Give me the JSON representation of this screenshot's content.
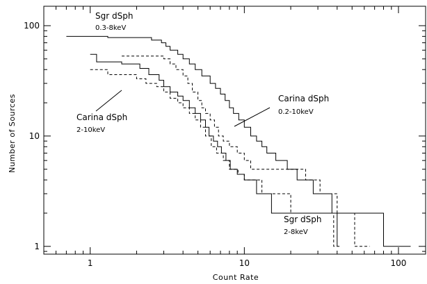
{
  "chart_data": {
    "type": "line",
    "step": true,
    "xscale": "log",
    "yscale": "log",
    "xlabel": "Count Rate",
    "ylabel": "Number of Sources",
    "xlim": [
      0.5,
      150
    ],
    "ylim": [
      0.85,
      150
    ],
    "xticks": [
      {
        "value": 1,
        "label": "1"
      },
      {
        "value": 10,
        "label": "10"
      },
      {
        "value": 100,
        "label": "100"
      }
    ],
    "yticks": [
      {
        "value": 1,
        "label": "1"
      },
      {
        "value": 10,
        "label": "10"
      },
      {
        "value": 100,
        "label": "100"
      }
    ],
    "series": [
      {
        "name": "Sgr dSph 0.3-8keV",
        "style": "solid",
        "points": [
          [
            0.7,
            80
          ],
          [
            1.3,
            78
          ],
          [
            2.5,
            74
          ],
          [
            2.9,
            70
          ],
          [
            3.1,
            65
          ],
          [
            3.3,
            60
          ],
          [
            3.7,
            55
          ],
          [
            4.0,
            50
          ],
          [
            4.4,
            45
          ],
          [
            4.8,
            40
          ],
          [
            5.3,
            35
          ],
          [
            6.0,
            30
          ],
          [
            6.5,
            27
          ],
          [
            7.0,
            24
          ],
          [
            7.5,
            21
          ],
          [
            8.0,
            18
          ],
          [
            8.5,
            16
          ],
          [
            9.2,
            14
          ],
          [
            10,
            12
          ],
          [
            11,
            10
          ],
          [
            12,
            9
          ],
          [
            13,
            8
          ],
          [
            14,
            7
          ],
          [
            16,
            6
          ],
          [
            19,
            5
          ],
          [
            22,
            4
          ],
          [
            28,
            3
          ],
          [
            37,
            2
          ],
          [
            80,
            1
          ],
          [
            120,
            1
          ]
        ]
      },
      {
        "name": "Carina dSph 0.2-10keV",
        "style": "dashed",
        "points": [
          [
            1.6,
            53
          ],
          [
            3.0,
            50
          ],
          [
            3.3,
            45
          ],
          [
            3.6,
            40
          ],
          [
            4.0,
            35
          ],
          [
            4.3,
            30
          ],
          [
            4.6,
            25
          ],
          [
            5.0,
            21
          ],
          [
            5.3,
            18
          ],
          [
            5.6,
            16
          ],
          [
            6.0,
            14
          ],
          [
            6.4,
            12
          ],
          [
            6.8,
            10
          ],
          [
            7.3,
            9
          ],
          [
            8.0,
            8
          ],
          [
            9.0,
            7
          ],
          [
            10,
            6
          ],
          [
            11,
            5
          ],
          [
            15,
            5
          ],
          [
            25,
            4
          ],
          [
            31,
            3
          ],
          [
            40,
            2
          ],
          [
            52,
            1
          ],
          [
            65,
            1
          ]
        ]
      },
      {
        "name": "Carina dSph 2-10keV",
        "style": "solid",
        "points": [
          [
            1.0,
            55
          ],
          [
            1.1,
            47
          ],
          [
            1.6,
            45
          ],
          [
            2.1,
            41
          ],
          [
            2.4,
            36
          ],
          [
            2.8,
            32
          ],
          [
            3.0,
            28
          ],
          [
            3.3,
            25
          ],
          [
            3.7,
            23
          ],
          [
            4.0,
            21
          ],
          [
            4.4,
            18
          ],
          [
            4.8,
            16
          ],
          [
            5.2,
            14
          ],
          [
            5.6,
            12
          ],
          [
            5.9,
            10
          ],
          [
            6.3,
            9
          ],
          [
            6.7,
            8
          ],
          [
            7.1,
            7
          ],
          [
            7.6,
            6
          ],
          [
            8.1,
            5
          ],
          [
            9.0,
            4.5
          ],
          [
            10,
            4
          ],
          [
            12,
            3
          ],
          [
            15,
            2
          ],
          [
            40,
            1
          ]
        ]
      },
      {
        "name": "Sgr dSph 2-8keV",
        "style": "dashed",
        "points": [
          [
            1.0,
            40
          ],
          [
            1.3,
            36
          ],
          [
            2.0,
            33
          ],
          [
            2.3,
            30
          ],
          [
            2.7,
            28
          ],
          [
            3.0,
            25
          ],
          [
            3.3,
            22
          ],
          [
            3.7,
            20
          ],
          [
            4.0,
            18
          ],
          [
            4.4,
            16
          ],
          [
            4.8,
            14
          ],
          [
            5.2,
            12
          ],
          [
            5.6,
            10
          ],
          [
            6.1,
            8
          ],
          [
            6.6,
            7
          ],
          [
            7.3,
            6
          ],
          [
            8.0,
            5
          ],
          [
            9.1,
            4.5
          ],
          [
            10,
            4
          ],
          [
            13,
            3
          ],
          [
            20,
            2
          ],
          [
            38,
            1
          ],
          [
            42,
            1
          ]
        ]
      }
    ],
    "annotations": [
      {
        "id": "sgr-broad",
        "line1": "Sgr dSph",
        "line2": "0.3-8keV"
      },
      {
        "id": "carina-broad",
        "line1": "Carina dSph",
        "line2": "0.2-10keV"
      },
      {
        "id": "carina-hard",
        "line1": "Carina dSph",
        "line2": "2-10keV"
      },
      {
        "id": "sgr-hard",
        "line1": "Sgr dSph",
        "line2": "2-8keV"
      }
    ]
  }
}
